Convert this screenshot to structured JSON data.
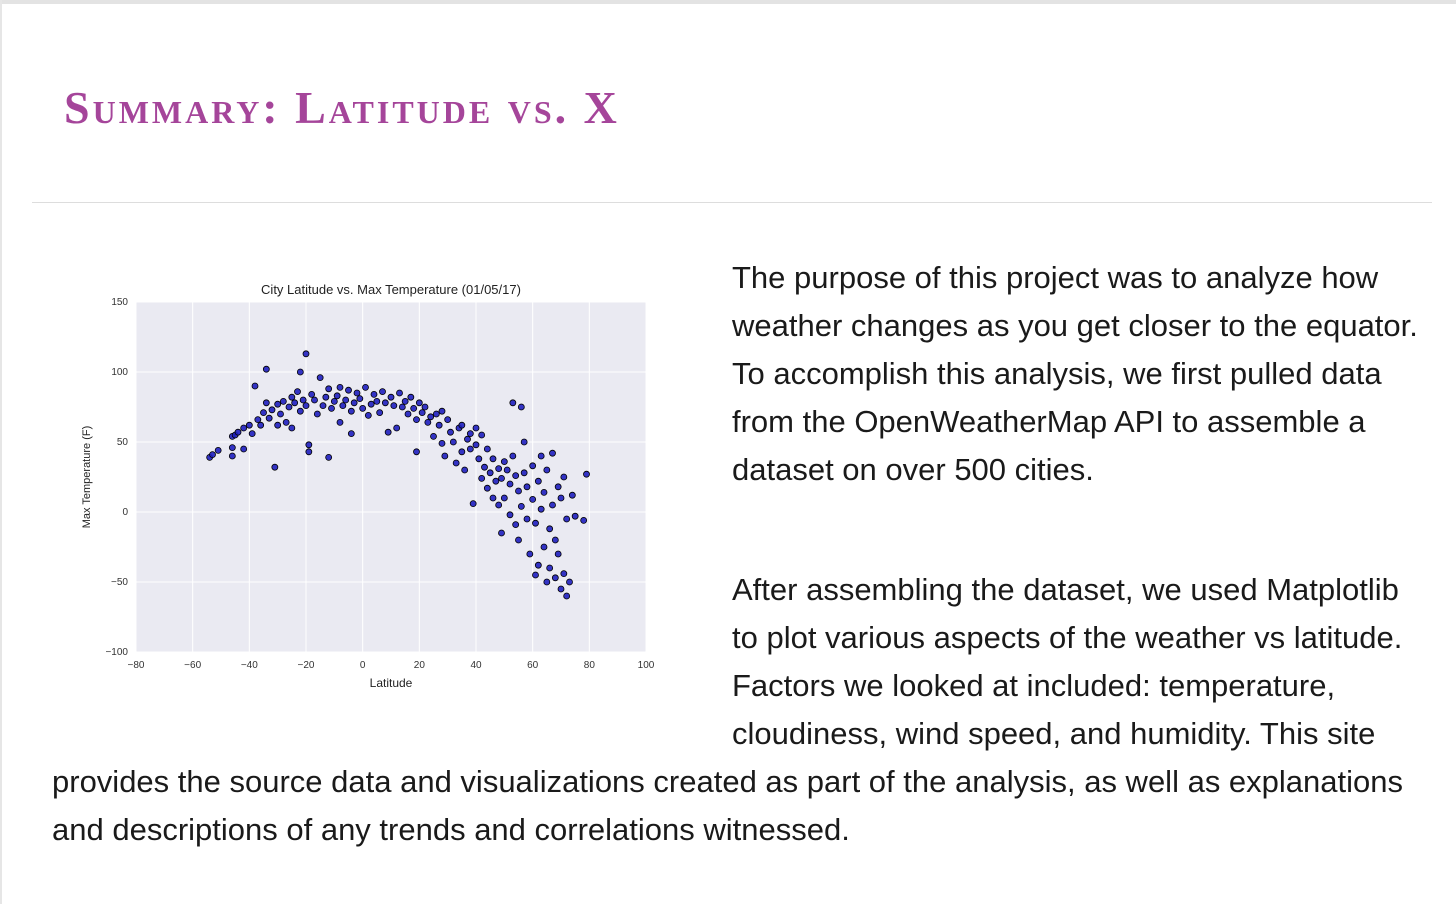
{
  "page": {
    "title": "Summary: Latitude vs. X",
    "paragraph1": "The purpose of this project was to analyze how weather changes as you get closer to the equator. To accomplish this analysis, we first pulled data from the OpenWeatherMap API to assemble a dataset on over 500 cities.",
    "paragraph2": "After assembling the dataset, we used Matplotlib to plot various aspects of the weather vs latitude. Factors we looked at included: temperature, cloudiness, wind speed, and humidity. This site provides the source data and visualizations created as part of the analysis, as well as explanations and descriptions of any trends and correlations witnessed."
  },
  "chart_data": {
    "type": "scatter",
    "title": "City Latitude vs. Max Temperature (01/05/17)",
    "xlabel": "Latitude",
    "ylabel": "Max Temperature (F)",
    "xlim": [
      -80,
      100
    ],
    "ylim": [
      -100,
      150
    ],
    "xticks": [
      -80,
      -60,
      -40,
      -20,
      0,
      20,
      40,
      60,
      80,
      100
    ],
    "yticks": [
      -100,
      -50,
      0,
      50,
      100,
      150
    ],
    "grid": true,
    "colors": {
      "point": "#1f1fbf",
      "edge": "#000000",
      "background": "#eaeaf2",
      "grid": "#ffffff"
    },
    "points": [
      [
        -54,
        39
      ],
      [
        -53,
        41
      ],
      [
        -51,
        44
      ],
      [
        -46,
        40
      ],
      [
        -46,
        46
      ],
      [
        -46,
        54
      ],
      [
        -45,
        55
      ],
      [
        -44,
        57
      ],
      [
        -42,
        60
      ],
      [
        -42,
        45
      ],
      [
        -40,
        62
      ],
      [
        -39,
        56
      ],
      [
        -38,
        90
      ],
      [
        -37,
        66
      ],
      [
        -36,
        62
      ],
      [
        -35,
        71
      ],
      [
        -34,
        78
      ],
      [
        -34,
        102
      ],
      [
        -33,
        67
      ],
      [
        -32,
        73
      ],
      [
        -31,
        32
      ],
      [
        -30,
        62
      ],
      [
        -30,
        77
      ],
      [
        -29,
        70
      ],
      [
        -28,
        79
      ],
      [
        -27,
        64
      ],
      [
        -26,
        75
      ],
      [
        -25,
        82
      ],
      [
        -25,
        60
      ],
      [
        -24,
        78
      ],
      [
        -23,
        86
      ],
      [
        -22,
        72
      ],
      [
        -22,
        100
      ],
      [
        -21,
        80
      ],
      [
        -20,
        113
      ],
      [
        -20,
        76
      ],
      [
        -19,
        48
      ],
      [
        -19,
        43
      ],
      [
        -18,
        84
      ],
      [
        -17,
        80
      ],
      [
        -16,
        70
      ],
      [
        -15,
        96
      ],
      [
        -14,
        76
      ],
      [
        -13,
        82
      ],
      [
        -12,
        39
      ],
      [
        -12,
        88
      ],
      [
        -11,
        74
      ],
      [
        -10,
        79
      ],
      [
        -9,
        83
      ],
      [
        -8,
        89
      ],
      [
        -8,
        64
      ],
      [
        -7,
        76
      ],
      [
        -6,
        80
      ],
      [
        -5,
        87
      ],
      [
        -4,
        72
      ],
      [
        -4,
        56
      ],
      [
        -3,
        78
      ],
      [
        -2,
        85
      ],
      [
        -1,
        81
      ],
      [
        0,
        74
      ],
      [
        1,
        89
      ],
      [
        2,
        69
      ],
      [
        3,
        77
      ],
      [
        4,
        84
      ],
      [
        5,
        79
      ],
      [
        6,
        71
      ],
      [
        7,
        86
      ],
      [
        8,
        78
      ],
      [
        9,
        57
      ],
      [
        10,
        82
      ],
      [
        11,
        76
      ],
      [
        12,
        60
      ],
      [
        13,
        85
      ],
      [
        14,
        75
      ],
      [
        15,
        79
      ],
      [
        16,
        70
      ],
      [
        17,
        82
      ],
      [
        18,
        74
      ],
      [
        19,
        66
      ],
      [
        19,
        43
      ],
      [
        20,
        78
      ],
      [
        21,
        71
      ],
      [
        22,
        75
      ],
      [
        23,
        64
      ],
      [
        24,
        68
      ],
      [
        25,
        54
      ],
      [
        26,
        70
      ],
      [
        27,
        62
      ],
      [
        28,
        49
      ],
      [
        28,
        72
      ],
      [
        29,
        40
      ],
      [
        30,
        66
      ],
      [
        31,
        57
      ],
      [
        32,
        50
      ],
      [
        33,
        35
      ],
      [
        34,
        60
      ],
      [
        35,
        43
      ],
      [
        35,
        62
      ],
      [
        36,
        30
      ],
      [
        37,
        52
      ],
      [
        38,
        45
      ],
      [
        38,
        56
      ],
      [
        39,
        6
      ],
      [
        40,
        48
      ],
      [
        40,
        60
      ],
      [
        41,
        38
      ],
      [
        42,
        24
      ],
      [
        42,
        55
      ],
      [
        43,
        32
      ],
      [
        44,
        17
      ],
      [
        44,
        45
      ],
      [
        45,
        28
      ],
      [
        46,
        10
      ],
      [
        46,
        38
      ],
      [
        47,
        22
      ],
      [
        48,
        5
      ],
      [
        48,
        31
      ],
      [
        49,
        -15
      ],
      [
        49,
        24
      ],
      [
        50,
        36
      ],
      [
        50,
        10
      ],
      [
        51,
        30
      ],
      [
        52,
        -2
      ],
      [
        52,
        20
      ],
      [
        53,
        78
      ],
      [
        53,
        40
      ],
      [
        54,
        -9
      ],
      [
        54,
        26
      ],
      [
        55,
        15
      ],
      [
        55,
        -20
      ],
      [
        56,
        75
      ],
      [
        56,
        4
      ],
      [
        57,
        50
      ],
      [
        57,
        28
      ],
      [
        58,
        -5
      ],
      [
        58,
        18
      ],
      [
        59,
        -30
      ],
      [
        60,
        33
      ],
      [
        60,
        9
      ],
      [
        61,
        -45
      ],
      [
        61,
        -8
      ],
      [
        62,
        22
      ],
      [
        62,
        -38
      ],
      [
        63,
        40
      ],
      [
        63,
        2
      ],
      [
        64,
        -25
      ],
      [
        64,
        14
      ],
      [
        65,
        -50
      ],
      [
        65,
        30
      ],
      [
        66,
        -12
      ],
      [
        66,
        -40
      ],
      [
        67,
        42
      ],
      [
        67,
        5
      ],
      [
        68,
        -20
      ],
      [
        68,
        -47
      ],
      [
        69,
        18
      ],
      [
        69,
        -30
      ],
      [
        70,
        -55
      ],
      [
        70,
        10
      ],
      [
        71,
        -44
      ],
      [
        71,
        25
      ],
      [
        72,
        -60
      ],
      [
        72,
        -5
      ],
      [
        73,
        -50
      ],
      [
        74,
        12
      ],
      [
        75,
        -3
      ],
      [
        78,
        -6
      ],
      [
        79,
        27
      ]
    ]
  }
}
